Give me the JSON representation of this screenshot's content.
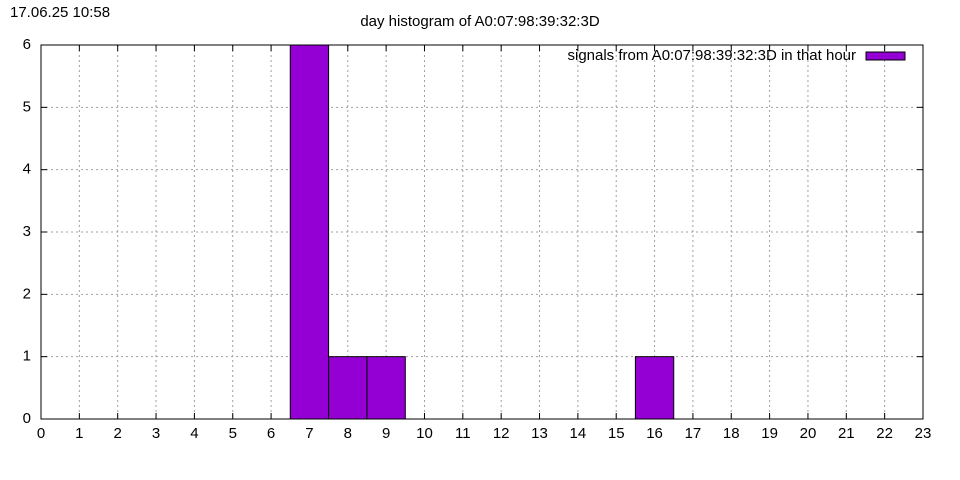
{
  "chart_data": {
    "type": "bar",
    "title": "day histogram of A0:07:98:39:32:3D",
    "annotation": "17.06.25 10:58",
    "x": [
      7,
      8,
      9,
      16
    ],
    "series": [
      {
        "name": "signals from A0:07:98:39:32:3D in that hour",
        "color": "#9400d3",
        "values": [
          6,
          1,
          1,
          1
        ]
      }
    ],
    "xlim": [
      0,
      23
    ],
    "xticks": [
      0,
      1,
      2,
      3,
      4,
      5,
      6,
      7,
      8,
      9,
      10,
      11,
      12,
      13,
      14,
      15,
      16,
      17,
      18,
      19,
      20,
      21,
      22,
      23
    ],
    "ylim": [
      0,
      6
    ],
    "yticks": [
      0,
      1,
      2,
      3,
      4,
      5,
      6
    ],
    "grid": true,
    "legend": "top-right"
  }
}
